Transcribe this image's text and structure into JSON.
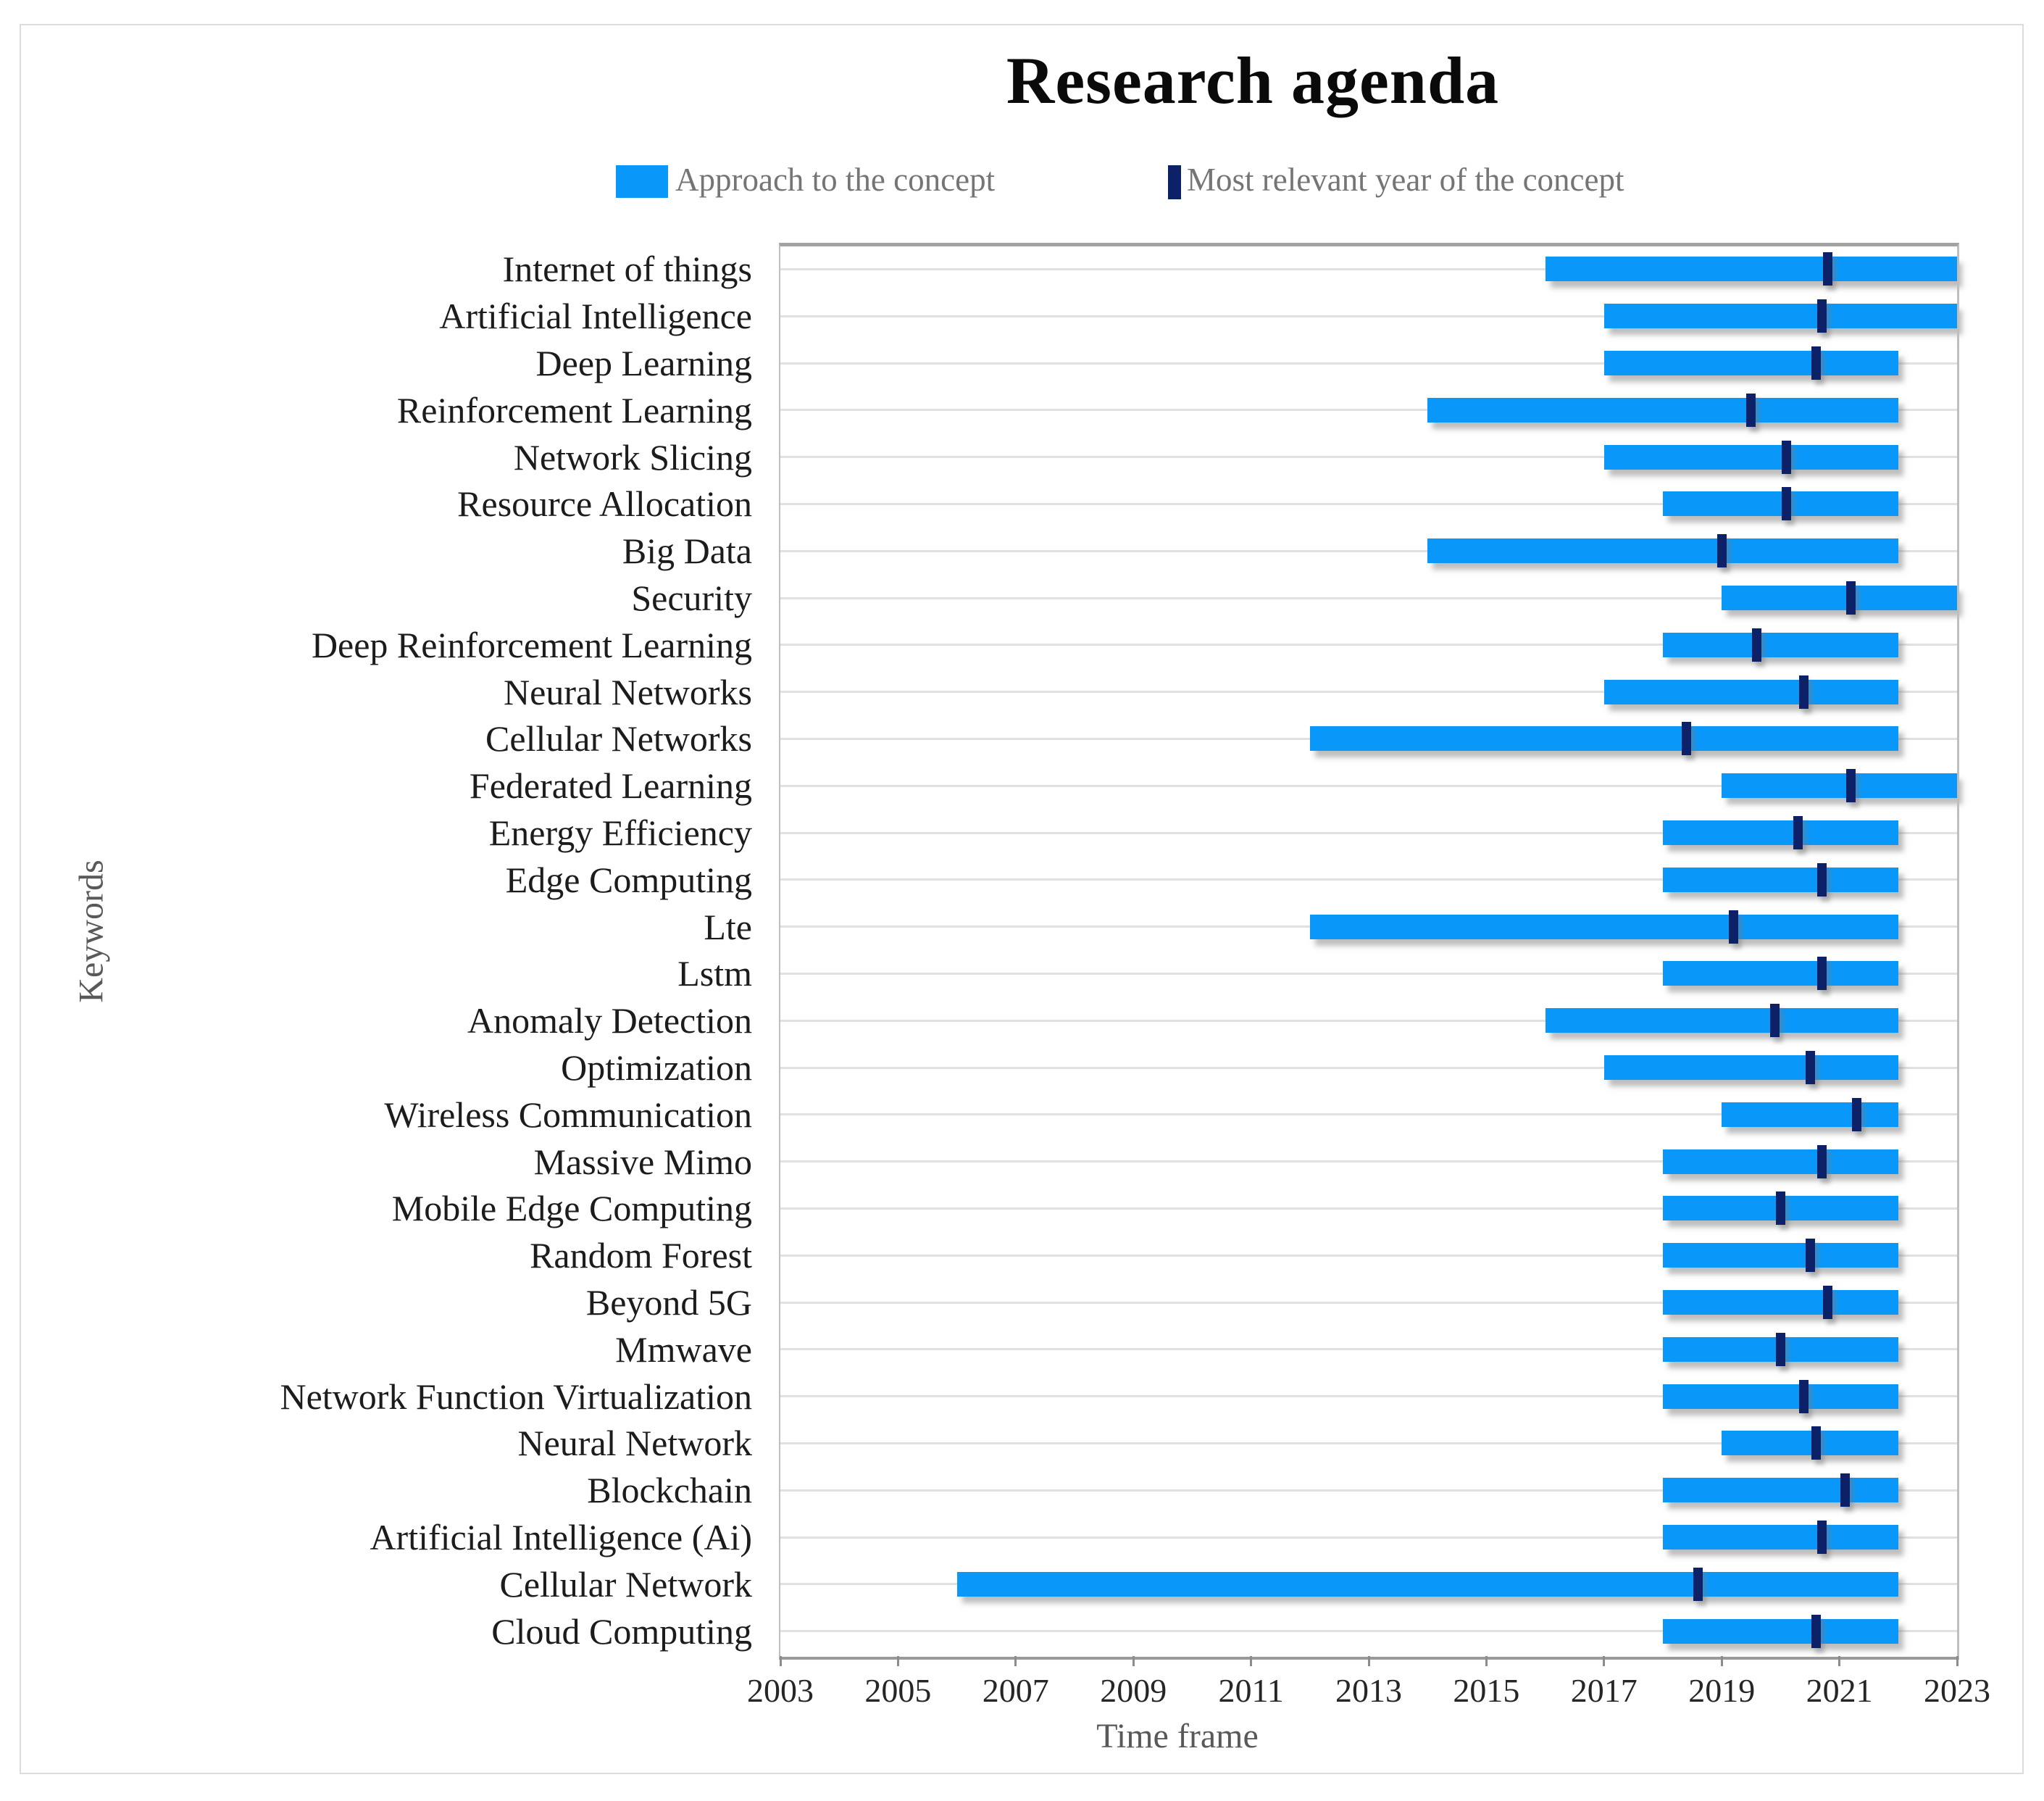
{
  "title": "Research agenda",
  "legend": {
    "approach": {
      "label": "Approach to the concept"
    },
    "relevant_year": {
      "label": "Most relevant year of the concept"
    }
  },
  "colors": {
    "bar": "#0998fa",
    "marker": "#0d2168",
    "grid": "#e1e1e1",
    "tick_mark": "#8c8c8c",
    "tick_label": "#262626",
    "y_label": "#1c1c1c",
    "legend_text": "#757575",
    "axis_title": "#595959"
  },
  "chart_data": {
    "type": "bar",
    "orientation": "horizontal-range",
    "title": "Research agenda",
    "xlabel": "Time frame",
    "ylabel": "Keywords",
    "xlim": [
      2003,
      2023
    ],
    "x_ticks": [
      2003,
      2005,
      2007,
      2009,
      2011,
      2013,
      2015,
      2017,
      2019,
      2021,
      2023
    ],
    "grid": "horizontal",
    "legend_position": "top",
    "series_meaning": {
      "bar_range": "Approach to the concept (start year to end year)",
      "marker": "Most relevant year of the concept"
    },
    "series": [
      {
        "label": "Internet of things",
        "start": 2016,
        "end": 2023,
        "most_relevant_year": 2020.8
      },
      {
        "label": "Artificial Intelligence",
        "start": 2017,
        "end": 2023,
        "most_relevant_year": 2020.7
      },
      {
        "label": "Deep Learning",
        "start": 2017,
        "end": 2022,
        "most_relevant_year": 2020.6
      },
      {
        "label": "Reinforcement Learning",
        "start": 2014,
        "end": 2022,
        "most_relevant_year": 2019.5
      },
      {
        "label": "Network Slicing",
        "start": 2017,
        "end": 2022,
        "most_relevant_year": 2020.1
      },
      {
        "label": "Resource Allocation",
        "start": 2018,
        "end": 2022,
        "most_relevant_year": 2020.1
      },
      {
        "label": "Big Data",
        "start": 2014,
        "end": 2022,
        "most_relevant_year": 2019.0
      },
      {
        "label": "Security",
        "start": 2019,
        "end": 2023,
        "most_relevant_year": 2021.2
      },
      {
        "label": "Deep Reinforcement Learning",
        "start": 2018,
        "end": 2022,
        "most_relevant_year": 2019.6
      },
      {
        "label": "Neural Networks",
        "start": 2017,
        "end": 2022,
        "most_relevant_year": 2020.4
      },
      {
        "label": "Cellular Networks",
        "start": 2012,
        "end": 2022,
        "most_relevant_year": 2018.4
      },
      {
        "label": "Federated Learning",
        "start": 2019,
        "end": 2023,
        "most_relevant_year": 2021.2
      },
      {
        "label": "Energy Efficiency",
        "start": 2018,
        "end": 2022,
        "most_relevant_year": 2020.3
      },
      {
        "label": "Edge Computing",
        "start": 2018,
        "end": 2022,
        "most_relevant_year": 2020.7
      },
      {
        "label": "Lte",
        "start": 2012,
        "end": 2022,
        "most_relevant_year": 2019.2
      },
      {
        "label": "Lstm",
        "start": 2018,
        "end": 2022,
        "most_relevant_year": 2020.7
      },
      {
        "label": "Anomaly Detection",
        "start": 2016,
        "end": 2022,
        "most_relevant_year": 2019.9
      },
      {
        "label": "Optimization",
        "start": 2017,
        "end": 2022,
        "most_relevant_year": 2020.5
      },
      {
        "label": "Wireless Communication",
        "start": 2019,
        "end": 2022,
        "most_relevant_year": 2021.3
      },
      {
        "label": "Massive Mimo",
        "start": 2018,
        "end": 2022,
        "most_relevant_year": 2020.7
      },
      {
        "label": "Mobile Edge Computing",
        "start": 2018,
        "end": 2022,
        "most_relevant_year": 2020.0
      },
      {
        "label": "Random Forest",
        "start": 2018,
        "end": 2022,
        "most_relevant_year": 2020.5
      },
      {
        "label": "Beyond 5G",
        "start": 2018,
        "end": 2022,
        "most_relevant_year": 2020.8
      },
      {
        "label": "Mmwave",
        "start": 2018,
        "end": 2022,
        "most_relevant_year": 2020.0
      },
      {
        "label": "Network Function Virtualization",
        "start": 2018,
        "end": 2022,
        "most_relevant_year": 2020.4
      },
      {
        "label": "Neural Network",
        "start": 2019,
        "end": 2022,
        "most_relevant_year": 2020.6
      },
      {
        "label": "Blockchain",
        "start": 2018,
        "end": 2022,
        "most_relevant_year": 2021.1
      },
      {
        "label": "Artificial Intelligence (Ai)",
        "start": 2018,
        "end": 2022,
        "most_relevant_year": 2020.7
      },
      {
        "label": "Cellular Network",
        "start": 2006,
        "end": 2022,
        "most_relevant_year": 2018.6
      },
      {
        "label": "Cloud Computing",
        "start": 2018,
        "end": 2022,
        "most_relevant_year": 2020.6
      }
    ]
  }
}
